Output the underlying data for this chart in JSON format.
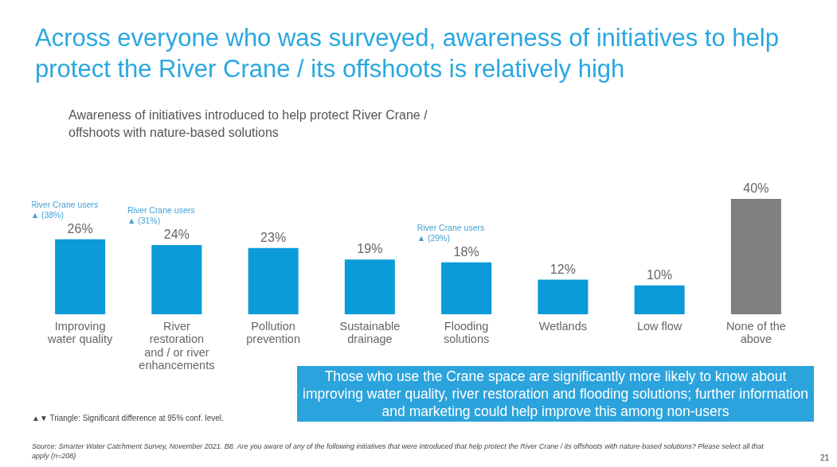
{
  "chart_data": {
    "type": "bar",
    "title": "Across everyone who was surveyed, awareness of initiatives to help protect the River Crane / its offshoots is relatively high",
    "subtitle": "Awareness of initiatives introduced to help protect River Crane / offshoots with nature-based solutions",
    "categories": [
      "Improving water quality",
      "River restoration and / or river enhancements",
      "Pollution prevention",
      "Sustainable drainage",
      "Flooding solutions",
      "Wetlands",
      "Low flow",
      "None of the above"
    ],
    "values": [
      26,
      24,
      23,
      19,
      18,
      12,
      10,
      40
    ],
    "value_labels": [
      "26%",
      "24%",
      "23%",
      "19%",
      "18%",
      "12%",
      "10%",
      "40%"
    ],
    "colors": [
      "#0b9bd8",
      "#0b9bd8",
      "#0b9bd8",
      "#0b9bd8",
      "#0b9bd8",
      "#0b9bd8",
      "#0b9bd8",
      "#7f7f7f"
    ],
    "annotations": [
      {
        "text": "River Crane users\n▲ (38%)",
        "x": "Improving water quality",
        "y": 26
      },
      {
        "text": "River Crane users\n▲ (31%)",
        "x": "River restoration and / or river enhancements",
        "y": 24
      },
      {
        "text": "River Crane users\n▲ (29%)",
        "x": "Flooding solutions",
        "y": 18
      },
      "Those who use the Crane space are significantly more likely to know about improving water quality, river restoration and flooding solutions; further information and marketing could help improve this among non-users",
      "▲▼ Triangle: Significant difference at 95% conf. level.",
      "Source: Smarter Water Catchment Survey, November 2021. B8. Are you aware of any of the following initiatives that were introduced that help protect the River Crane / its offshoots with nature-based solutions? Please select all that apply (n=208)",
      "21"
    ]
  }
}
